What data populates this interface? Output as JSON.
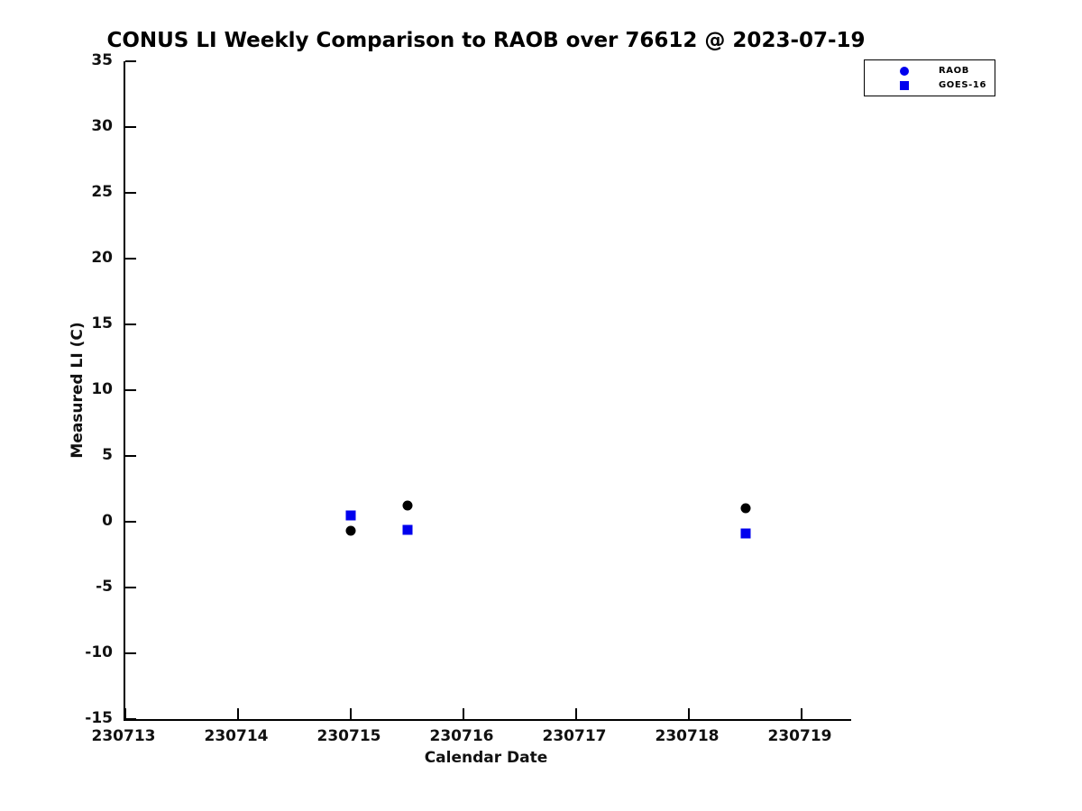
{
  "chart_data": {
    "type": "scatter",
    "title": "CONUS LI Weekly Comparison to RAOB over 76612 @ 2023-07-19",
    "xlabel": "Calendar Date",
    "ylabel": "Measured LI (C)",
    "x_range": [
      230713,
      230719.44
    ],
    "y_range": [
      -15,
      35
    ],
    "x_ticks": [
      230713,
      230714,
      230715,
      230716,
      230717,
      230718,
      230719
    ],
    "y_ticks": [
      35,
      30,
      25,
      20,
      15,
      10,
      5,
      0,
      -5,
      -10,
      -15
    ],
    "grid": false,
    "legend_position": "top-right",
    "series": [
      {
        "name": "RAOB",
        "marker": "circle",
        "plot_color": "#000000",
        "legend_color": "#0000ee",
        "points": [
          {
            "x": 230715.0,
            "y": -0.7
          },
          {
            "x": 230715.5,
            "y": 1.2
          },
          {
            "x": 230718.5,
            "y": 1.0
          }
        ]
      },
      {
        "name": "GOES-16",
        "marker": "square",
        "plot_color": "#0000ee",
        "legend_color": "#0000ee",
        "points": [
          {
            "x": 230715.0,
            "y": 0.5
          },
          {
            "x": 230715.5,
            "y": -0.6
          },
          {
            "x": 230718.5,
            "y": -0.9
          }
        ]
      }
    ]
  },
  "colors": {
    "axis": "#000000",
    "tick_text": "#111111",
    "title_text": "#000000",
    "marker_blue": "#0000ee",
    "marker_black": "#000000",
    "background": "#ffffff"
  }
}
